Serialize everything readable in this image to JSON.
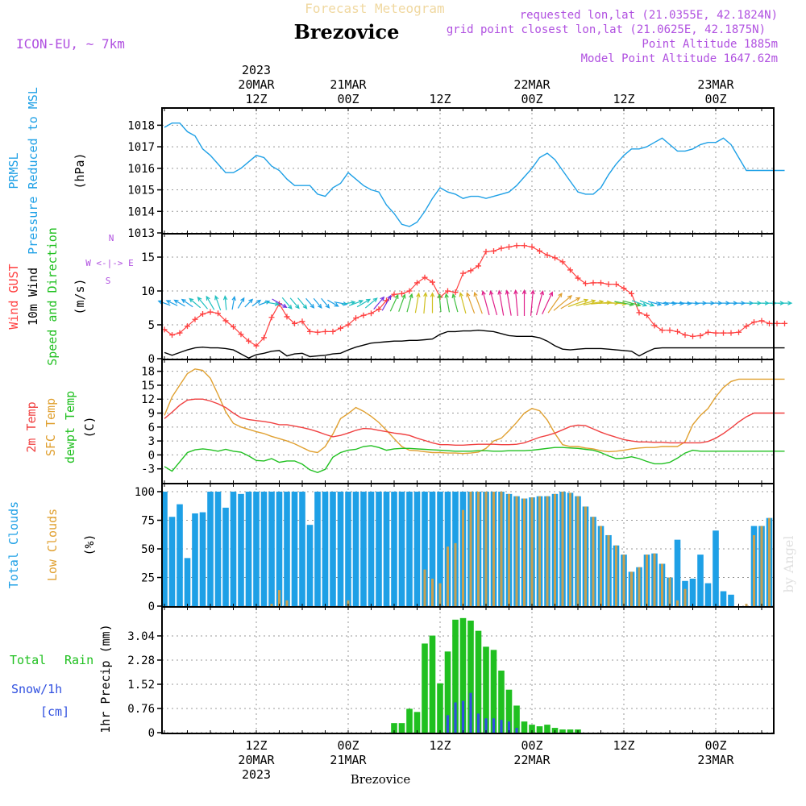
{
  "header": {
    "subtitle": "Forecast Meteogram",
    "title": "Brezovice",
    "model": "ICON-EU, ~ 7km",
    "requested": "requested lon,lat (21.0355E, 42.1824N)",
    "grid_point": "grid point closest lon,lat (21.0625E, 42.1875N)",
    "point_alt": "Point Altitude 1885m",
    "model_alt": "Model Point Altitude 1647.62m",
    "footer_name": "Brezovice",
    "watermark": "by Angel"
  },
  "time_axis": {
    "top_ticks": [
      {
        "l1": "2023",
        "l2": "20MAR",
        "l3": "12Z",
        "h": 12
      },
      {
        "l1": "",
        "l2": "21MAR",
        "l3": "00Z",
        "h": 24
      },
      {
        "l1": "",
        "l2": "",
        "l3": "12Z",
        "h": 36
      },
      {
        "l1": "",
        "l2": "22MAR",
        "l3": "00Z",
        "h": 48
      },
      {
        "l1": "",
        "l2": "",
        "l3": "12Z",
        "h": 60
      },
      {
        "l1": "",
        "l2": "23MAR",
        "l3": "00Z",
        "h": 72
      }
    ],
    "bottom_ticks": [
      {
        "l1": "12Z",
        "l2": "20MAR",
        "l3": "2023",
        "h": 12
      },
      {
        "l1": "00Z",
        "l2": "21MAR",
        "l3": "",
        "h": 24
      },
      {
        "l1": "12Z",
        "l2": "",
        "l3": "",
        "h": 36
      },
      {
        "l1": "00Z",
        "l2": "22MAR",
        "l3": "",
        "h": 48
      },
      {
        "l1": "12Z",
        "l2": "",
        "l3": "",
        "h": 60
      },
      {
        "l1": "00Z",
        "l2": "23MAR",
        "l3": "",
        "h": 72
      }
    ]
  },
  "labels": {
    "p1": {
      "a": "PRMSL",
      "b": "Pressure Reduced to MSL",
      "unit": "(hPa)"
    },
    "p2": {
      "a": "Wind GUST",
      "b": "10m Wind",
      "c": "Speed and Direction",
      "unit": "(m/s)",
      "compass_n": "N",
      "compass_s": "S",
      "compass_w": "W <-|-> E",
      "compass_nl": "^",
      "compass_sl": "<-"
    },
    "p3": {
      "a": "2m Temp",
      "b": "SFC Temp",
      "c": "dewpt Temp",
      "unit": "(C)"
    },
    "p4": {
      "a": "Total Clouds",
      "b": "Low Clouds",
      "unit": "(%)"
    },
    "p5": {
      "a": "Total",
      "b": "Rain",
      "c": "Snow/1h",
      "d": "[cm]",
      "unit": "1hr Precip (mm)"
    }
  },
  "colors": {
    "pressure": "#1ea0e6",
    "gust": "#ff4040",
    "wind": "#000000",
    "temp2m": "#f04040",
    "sfc": "#e0a030",
    "dew": "#20c020",
    "total_cloud": "#1ea0e6",
    "low_cloud": "#c8a050",
    "rain": "#20c020",
    "snow": "#3050e0",
    "purple": "#b050e0",
    "green_label": "#20c020"
  },
  "chart_data": [
    {
      "type": "line",
      "name": "pressure",
      "x": [
        0,
        1,
        2,
        3,
        4,
        5,
        6,
        7,
        8,
        9,
        10,
        11,
        12,
        13,
        14,
        15,
        16,
        17,
        18,
        19,
        20,
        21,
        22,
        23,
        24,
        25,
        26,
        27,
        28,
        29,
        30,
        31,
        32,
        33,
        34,
        35,
        36,
        37,
        38,
        39,
        40,
        41,
        42,
        43,
        44,
        45,
        46,
        47,
        48,
        49,
        50,
        51,
        52,
        53,
        54,
        55,
        56,
        57,
        58,
        59,
        60,
        61,
        62,
        63,
        64,
        65,
        66,
        67,
        68,
        69,
        70,
        71,
        72,
        73,
        74,
        75,
        76,
        77,
        78,
        79,
        80,
        81
      ],
      "y": [
        1017.9,
        1018.1,
        1018.1,
        1017.7,
        1017.5,
        1016.9,
        1016.6,
        1016.2,
        1015.8,
        1015.8,
        1016.0,
        1016.3,
        1016.6,
        1016.5,
        1016.1,
        1015.9,
        1015.5,
        1015.2,
        1015.2,
        1015.2,
        1014.8,
        1014.7,
        1015.1,
        1015.3,
        1015.8,
        1015.5,
        1015.2,
        1015.0,
        1014.9,
        1014.3,
        1013.9,
        1013.4,
        1013.3,
        1013.5,
        1014.0,
        1014.6,
        1015.1,
        1014.9,
        1014.8,
        1014.6,
        1014.7,
        1014.7,
        1014.6,
        1014.7,
        1014.8,
        1014.9,
        1015.2,
        1015.6,
        1016.0,
        1016.5,
        1016.7,
        1016.4,
        1015.9,
        1015.4,
        1014.9,
        1014.8,
        1014.8,
        1015.1,
        1015.7,
        1016.2,
        1016.6,
        1016.9,
        1016.9,
        1017.0,
        1017.2,
        1017.4,
        1017.1,
        1016.8,
        1016.8,
        1016.9,
        1017.1,
        1017.2,
        1017.2,
        1017.4,
        1017.1,
        1016.5,
        1015.9,
        1015.9,
        1015.9,
        1015.9,
        1015.9,
        1015.9
      ],
      "ylim": [
        1013,
        1018.5
      ],
      "yticks": [
        1013,
        1014,
        1015,
        1016,
        1017,
        1018
      ]
    },
    {
      "type": "line",
      "name": "wind",
      "gust": [
        4.3,
        3.5,
        3.8,
        4.8,
        5.8,
        6.6,
        6.9,
        6.7,
        5.6,
        4.7,
        3.6,
        2.6,
        1.9,
        3.1,
        6.1,
        8.1,
        6.2,
        5.2,
        5.5,
        4.0,
        3.9,
        4.0,
        4.0,
        4.5,
        5.0,
        6.0,
        6.4,
        6.7,
        7.3,
        8.6,
        9.5,
        9.6,
        10.0,
        11.2,
        12.0,
        11.3,
        9.1,
        10.0,
        9.8,
        12.6,
        13.0,
        13.7,
        15.8,
        15.9,
        16.3,
        16.5,
        16.7,
        16.7,
        16.5,
        15.9,
        15.3,
        14.9,
        14.3,
        13.1,
        11.9,
        11.1,
        11.2,
        11.2,
        11.0,
        11.0,
        10.4,
        9.6,
        6.8,
        6.4,
        4.9,
        4.2,
        4.2,
        4.0,
        3.5,
        3.3,
        3.4,
        3.9,
        3.8,
        3.8,
        3.8,
        3.9,
        4.8,
        5.4,
        5.6,
        5.2,
        5.2,
        5.2
      ],
      "wind": [
        0.9,
        0.5,
        0.9,
        1.3,
        1.6,
        1.7,
        1.6,
        1.6,
        1.5,
        1.3,
        0.7,
        0.1,
        0.6,
        0.8,
        1.1,
        1.2,
        0.4,
        0.7,
        0.8,
        0.3,
        0.4,
        0.5,
        0.7,
        0.8,
        1.3,
        1.7,
        2.0,
        2.3,
        2.4,
        2.5,
        2.6,
        2.6,
        2.7,
        2.7,
        2.8,
        2.9,
        3.6,
        4.0,
        4.0,
        4.1,
        4.1,
        4.2,
        4.1,
        4.0,
        3.7,
        3.4,
        3.3,
        3.3,
        3.3,
        3.1,
        2.6,
        1.9,
        1.4,
        1.3,
        1.4,
        1.5,
        1.5,
        1.5,
        1.4,
        1.3,
        1.2,
        1.1,
        0.4,
        1.0,
        1.5,
        1.6,
        1.6,
        1.6,
        1.6,
        1.6,
        1.6,
        1.6,
        1.6,
        1.6,
        1.6,
        1.6,
        1.6,
        1.6,
        1.6,
        1.6,
        1.6,
        1.6
      ],
      "dir": [
        110,
        115,
        120,
        125,
        130,
        140,
        150,
        160,
        175,
        190,
        210,
        225,
        235,
        250,
        280,
        300,
        320,
        320,
        320,
        320,
        320,
        320,
        300,
        280,
        260,
        250,
        240,
        230,
        220,
        210,
        205,
        200,
        195,
        190,
        185,
        180,
        175,
        170,
        165,
        165,
        160,
        160,
        165,
        165,
        170,
        170,
        175,
        180,
        185,
        195,
        205,
        215,
        230,
        240,
        250,
        255,
        260,
        265,
        270,
        275,
        280,
        285,
        290,
        290,
        285,
        280,
        275,
        275,
        275,
        275,
        270,
        270,
        270,
        270,
        270,
        270,
        270,
        270,
        270,
        270,
        270,
        270
      ],
      "ylim": [
        0,
        17.5
      ],
      "yticks": [
        0,
        5,
        10,
        15
      ]
    },
    {
      "type": "line",
      "name": "temperature",
      "temp2m": [
        7.8,
        9.2,
        10.7,
        11.8,
        12.0,
        12.0,
        11.6,
        11.0,
        10.2,
        9.0,
        8.0,
        7.6,
        7.4,
        7.2,
        6.9,
        6.5,
        6.5,
        6.2,
        5.9,
        5.5,
        5.0,
        4.4,
        3.9,
        4.2,
        4.7,
        5.3,
        5.7,
        5.6,
        5.3,
        5.0,
        4.7,
        4.5,
        4.2,
        3.6,
        3.1,
        2.6,
        2.2,
        2.2,
        2.1,
        2.1,
        2.2,
        2.3,
        2.3,
        2.3,
        2.2,
        2.2,
        2.3,
        2.6,
        3.2,
        3.8,
        4.2,
        4.7,
        5.4,
        6.1,
        6.4,
        6.3,
        5.6,
        4.9,
        4.3,
        3.8,
        3.3,
        3.0,
        2.8,
        2.8,
        2.7,
        2.7,
        2.6,
        2.6,
        2.6,
        2.6,
        2.6,
        2.9,
        3.6,
        4.6,
        5.8,
        7.1,
        8.2,
        9.0,
        9.0,
        9.0,
        9.0,
        9.0
      ],
      "sfc": [
        8.5,
        12.5,
        15.0,
        17.5,
        18.5,
        18.2,
        16.5,
        13.0,
        9.3,
        6.8,
        6.0,
        5.5,
        5.0,
        4.6,
        4.0,
        3.5,
        3.0,
        2.4,
        1.6,
        0.8,
        0.5,
        1.8,
        4.5,
        7.8,
        8.9,
        10.2,
        9.4,
        8.3,
        7.0,
        5.3,
        3.5,
        1.8,
        1.0,
        0.9,
        0.7,
        0.5,
        0.5,
        0.4,
        0.4,
        0.3,
        0.4,
        0.6,
        1.4,
        3.0,
        3.6,
        5.2,
        7.0,
        9.0,
        10.0,
        9.5,
        7.5,
        4.6,
        2.2,
        1.8,
        1.8,
        1.5,
        1.3,
        0.9,
        0.7,
        0.8,
        1.0,
        1.3,
        1.5,
        1.6,
        1.6,
        1.8,
        1.8,
        1.8,
        2.8,
        6.5,
        8.5,
        10.0,
        12.5,
        14.5,
        15.8,
        16.3,
        16.3,
        16.3,
        16.3,
        16.3,
        16.3,
        16.3
      ],
      "dew": [
        -2.5,
        -3.5,
        -1.5,
        0.5,
        1.1,
        1.3,
        1.1,
        0.8,
        1.2,
        0.8,
        0.6,
        -0.2,
        -1.2,
        -1.3,
        -0.8,
        -1.6,
        -1.3,
        -1.3,
        -2.0,
        -3.2,
        -3.8,
        -3.1,
        -0.5,
        0.5,
        1.0,
        1.2,
        1.8,
        2.0,
        1.6,
        1.0,
        1.3,
        1.4,
        1.4,
        1.3,
        1.2,
        1.1,
        1.0,
        0.9,
        0.8,
        0.8,
        0.8,
        0.9,
        0.9,
        0.8,
        0.8,
        0.9,
        0.9,
        0.9,
        1.0,
        1.2,
        1.4,
        1.6,
        1.6,
        1.5,
        1.4,
        1.2,
        1.0,
        0.5,
        -0.2,
        -0.8,
        -0.7,
        -0.4,
        -0.8,
        -1.4,
        -1.9,
        -1.9,
        -1.6,
        -0.7,
        0.4,
        1.0,
        0.8,
        0.8,
        0.8,
        0.8,
        0.8,
        0.8,
        0.8,
        0.8,
        0.8,
        0.8,
        0.8,
        0.8
      ],
      "ylim": [
        -6,
        19.5
      ],
      "yticks": [
        -3,
        0,
        3,
        6,
        9,
        12,
        15,
        18
      ]
    },
    {
      "type": "bar",
      "name": "clouds",
      "total": [
        100,
        78,
        89,
        42,
        81,
        82,
        100,
        100,
        86,
        100,
        98,
        100,
        100,
        100,
        100,
        100,
        100,
        100,
        100,
        71,
        100,
        100,
        100,
        100,
        100,
        100,
        100,
        100,
        100,
        100,
        100,
        100,
        100,
        100,
        100,
        100,
        100,
        100,
        100,
        100,
        100,
        100,
        100,
        100,
        100,
        98,
        96,
        94,
        95,
        96,
        96,
        98,
        100,
        99,
        96,
        87,
        78,
        70,
        62,
        53,
        45,
        30,
        34,
        45,
        46,
        37,
        25,
        58,
        22,
        24,
        45,
        20,
        66,
        13,
        10,
        0,
        0,
        70,
        70,
        77,
        77,
        77
      ],
      "low": [
        0,
        0,
        0,
        0,
        0,
        0,
        0,
        0,
        0,
        0,
        0,
        0,
        0,
        0,
        2,
        14,
        5,
        0,
        0,
        0,
        0,
        0,
        0,
        0,
        5,
        0,
        0,
        0,
        0,
        0,
        0,
        0,
        0,
        0,
        32,
        24,
        20,
        52,
        55,
        84,
        100,
        100,
        100,
        100,
        100,
        98,
        96,
        94,
        95,
        96,
        96,
        98,
        100,
        99,
        96,
        87,
        78,
        70,
        62,
        53,
        45,
        30,
        34,
        45,
        46,
        37,
        25,
        5,
        15,
        0,
        0,
        0,
        0,
        0,
        0,
        0,
        2,
        62,
        70,
        77,
        77,
        77
      ],
      "ylim": [
        0,
        100
      ],
      "yticks": [
        0,
        25,
        50,
        75,
        100
      ]
    },
    {
      "type": "bar",
      "name": "precipitation",
      "rain": [
        0,
        0,
        0,
        0,
        0,
        0,
        0,
        0,
        0,
        0,
        0,
        0,
        0,
        0,
        0,
        0,
        0,
        0,
        0,
        0,
        0,
        0,
        0,
        0,
        0,
        0,
        0,
        0,
        0,
        0,
        0.3,
        0.3,
        0.75,
        0.65,
        2.8,
        3.05,
        1.55,
        2.55,
        3.55,
        3.6,
        3.52,
        3.2,
        2.7,
        2.6,
        1.95,
        1.35,
        0.85,
        0.35,
        0.25,
        0.2,
        0.25,
        0.15,
        0.1,
        0.1,
        0.1,
        0,
        0,
        0,
        0,
        0,
        0,
        0,
        0,
        0,
        0,
        0,
        0,
        0,
        0,
        0,
        0,
        0,
        0,
        0,
        0,
        0,
        0,
        0,
        0,
        0,
        0,
        0
      ],
      "snow": [
        0,
        0,
        0,
        0,
        0,
        0,
        0,
        0,
        0,
        0,
        0,
        0,
        0,
        0,
        0,
        0,
        0,
        0,
        0,
        0,
        0,
        0,
        0,
        0,
        0,
        0,
        0,
        0,
        0,
        0,
        0,
        0,
        0,
        0,
        0,
        0,
        0,
        0.55,
        0.95,
        1.0,
        1.25,
        0.6,
        0.45,
        0.45,
        0.4,
        0.35,
        0.15,
        0,
        0,
        0,
        0,
        0,
        0,
        0,
        0,
        0,
        0,
        0,
        0,
        0,
        0,
        0,
        0,
        0,
        0,
        0,
        0,
        0,
        0,
        0,
        0,
        0,
        0,
        0,
        0,
        0,
        0,
        0,
        0,
        0,
        0,
        0
      ],
      "ylim": [
        0,
        3.9
      ],
      "yticks": [
        0,
        0.76,
        1.52,
        2.28,
        3.04
      ]
    }
  ]
}
